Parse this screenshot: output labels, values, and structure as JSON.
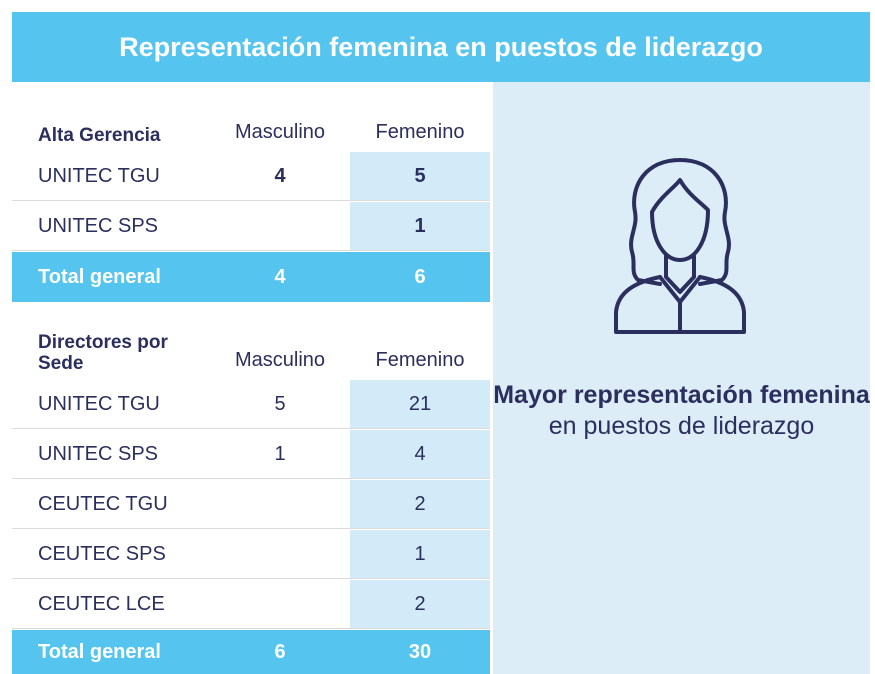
{
  "title": "Representación femenina en puestos de liderazgo",
  "sections": [
    {
      "heading": "Alta Gerencia",
      "columns": [
        "Masculino",
        "Femenino"
      ],
      "bold_values": true,
      "rows": [
        {
          "label": "UNITEC TGU",
          "values": [
            4,
            5
          ]
        },
        {
          "label": "UNITEC SPS",
          "values": [
            null,
            1
          ]
        }
      ],
      "total": {
        "label": "Total general",
        "values": [
          4,
          6
        ]
      }
    },
    {
      "heading": "Directores por Sede",
      "columns": [
        "Masculino",
        "Femenino"
      ],
      "bold_values": false,
      "rows": [
        {
          "label": "UNITEC TGU",
          "values": [
            5,
            21
          ]
        },
        {
          "label": "UNITEC SPS",
          "values": [
            1,
            4
          ]
        },
        {
          "label": "CEUTEC TGU",
          "values": [
            null,
            2
          ]
        },
        {
          "label": "CEUTEC SPS",
          "values": [
            null,
            1
          ]
        },
        {
          "label": "CEUTEC LCE",
          "values": [
            null,
            2
          ]
        }
      ],
      "total": {
        "label": "Total general",
        "values": [
          6,
          30
        ]
      }
    }
  ],
  "callout": {
    "highlight": "Mayor representación femenina",
    "text": "en puestos de liderazgo"
  }
}
